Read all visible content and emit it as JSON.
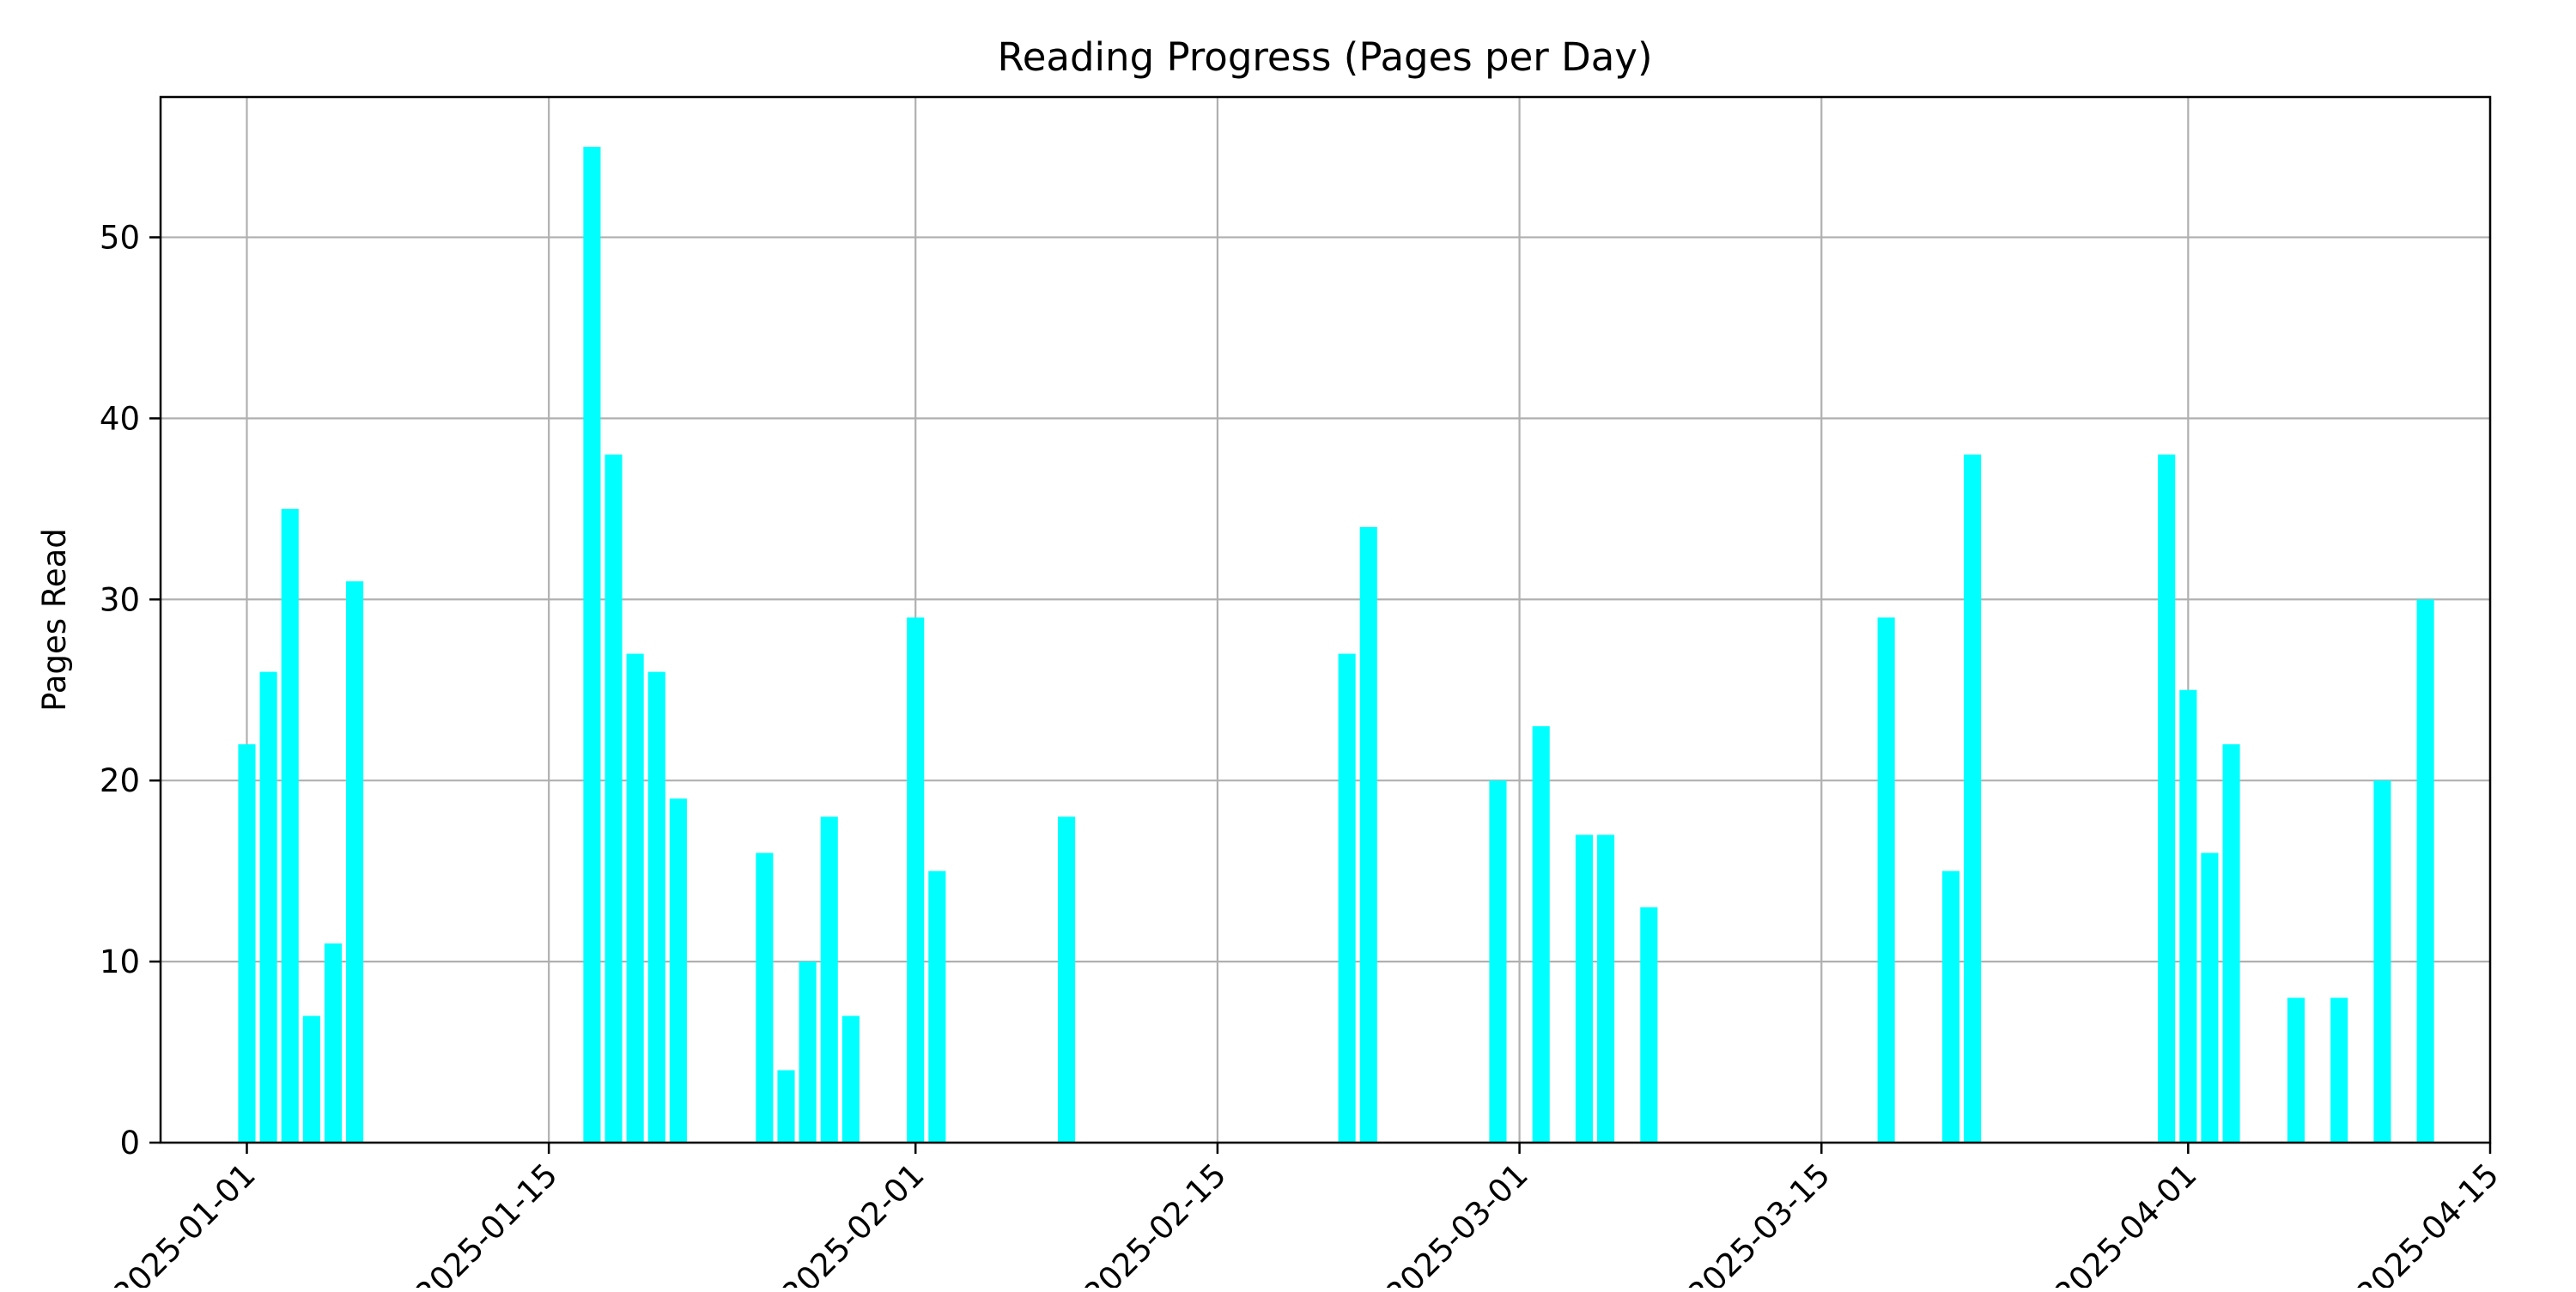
{
  "chart_data": {
    "type": "bar",
    "title": "Reading Progress (Pages per Day)",
    "xlabel": "",
    "ylabel": "Pages Read",
    "bar_color": "#00ffff",
    "grid_color": "#b0b0b0",
    "grid": true,
    "legend": "none",
    "xlim": [
      "2024-12-28",
      "2025-04-15"
    ],
    "ylim": [
      0,
      57.75
    ],
    "x_ticks": [
      "2025-01-01",
      "2025-01-15",
      "2025-02-01",
      "2025-02-15",
      "2025-03-01",
      "2025-03-15",
      "2025-04-01",
      "2025-04-15"
    ],
    "y_ticks": [
      0,
      10,
      20,
      30,
      40,
      50
    ],
    "dates": [
      "2025-01-01",
      "2025-01-02",
      "2025-01-03",
      "2025-01-04",
      "2025-01-05",
      "2025-01-06",
      "2025-01-17",
      "2025-01-18",
      "2025-01-19",
      "2025-01-20",
      "2025-01-21",
      "2025-01-25",
      "2025-01-26",
      "2025-01-27",
      "2025-01-28",
      "2025-01-29",
      "2025-02-01",
      "2025-02-02",
      "2025-02-08",
      "2025-02-21",
      "2025-02-22",
      "2025-02-28",
      "2025-03-02",
      "2025-03-04",
      "2025-03-05",
      "2025-03-07",
      "2025-03-18",
      "2025-03-21",
      "2025-03-22",
      "2025-03-31",
      "2025-04-01",
      "2025-04-02",
      "2025-04-03",
      "2025-04-06",
      "2025-04-08",
      "2025-04-10",
      "2025-04-12"
    ],
    "values": [
      22,
      26,
      35,
      7,
      11,
      31,
      55,
      38,
      27,
      26,
      19,
      16,
      4,
      10,
      18,
      7,
      29,
      15,
      18,
      27,
      34,
      20,
      23,
      17,
      17,
      13,
      29,
      15,
      38,
      38,
      25,
      16,
      22,
      8,
      8,
      20,
      30
    ]
  }
}
